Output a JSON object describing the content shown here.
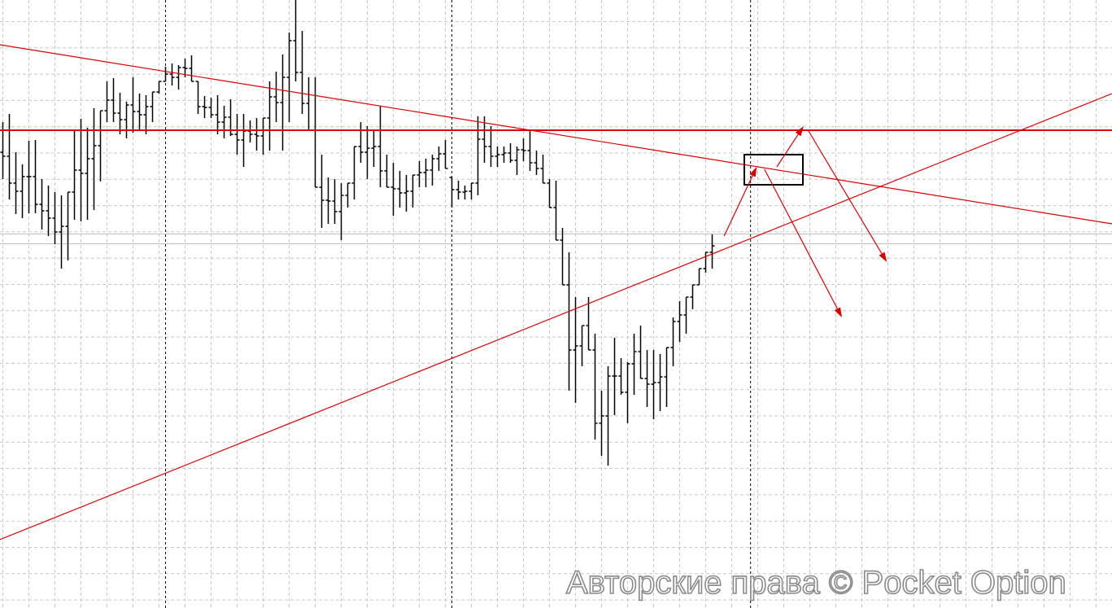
{
  "watermark": "Авторские права © Pocket Option",
  "colors": {
    "bars": "#000000",
    "drawings": "#dd0000",
    "grid": "#c8c8c8",
    "price_line": "#c0c0c0",
    "separator": "#000000"
  },
  "chart_data": {
    "type": "ohlc",
    "title": "",
    "grid": true,
    "ylim": [
      0,
      74.7
    ],
    "bars": [
      [
        56.0,
        59.7,
        52.7,
        55.5
      ],
      [
        55.5,
        60.7,
        50.2,
        52.2
      ],
      [
        52.2,
        56.0,
        48.4,
        51.2
      ],
      [
        51.2,
        54.5,
        47.9,
        53.0
      ],
      [
        53.0,
        57.4,
        48.5,
        53.0
      ],
      [
        53.0,
        57.5,
        48.5,
        49.6
      ],
      [
        49.6,
        52.7,
        46.5,
        48.8
      ],
      [
        48.8,
        51.9,
        45.7,
        47.9
      ],
      [
        47.9,
        51.1,
        44.7,
        46.2
      ],
      [
        46.2,
        50.7,
        41.7,
        46.9
      ],
      [
        46.9,
        51.1,
        42.7,
        51.1
      ],
      [
        51.1,
        58.7,
        47.7,
        53.8
      ],
      [
        53.8,
        60.1,
        47.5,
        53.4
      ],
      [
        53.4,
        59.0,
        47.7,
        55.2
      ],
      [
        55.2,
        61.4,
        48.9,
        56.8
      ],
      [
        56.8,
        61.1,
        52.4,
        61.1
      ],
      [
        61.1,
        64.7,
        59.7,
        62.4
      ],
      [
        62.4,
        65.1,
        59.7,
        60.8
      ],
      [
        60.8,
        63.3,
        58.2,
        60.0
      ],
      [
        60.0,
        62.2,
        57.7,
        61.8
      ],
      [
        61.8,
        65.2,
        58.4,
        61.0
      ],
      [
        61.0,
        63.2,
        58.7,
        60.6
      ],
      [
        60.6,
        63.0,
        58.2,
        61.6
      ],
      [
        61.6,
        63.4,
        59.7,
        63.4
      ],
      [
        63.4,
        64.7,
        63.2,
        64.7
      ],
      [
        64.7,
        66.5,
        64.7,
        65.6
      ],
      [
        65.6,
        66.9,
        64.2,
        65.2
      ],
      [
        65.2,
        66.7,
        63.7,
        66.4
      ],
      [
        66.4,
        67.5,
        65.2,
        66.3
      ],
      [
        66.3,
        67.9,
        64.7,
        64.7
      ],
      [
        64.7,
        64.7,
        60.7,
        61.6
      ],
      [
        61.6,
        62.9,
        60.2,
        61.5
      ],
      [
        61.5,
        62.7,
        60.2,
        60.6
      ],
      [
        60.6,
        63.0,
        58.2,
        59.7
      ],
      [
        59.7,
        61.7,
        57.7,
        60.3
      ],
      [
        60.3,
        62.5,
        58.0,
        58.2
      ],
      [
        58.2,
        60.7,
        55.7,
        57.5
      ],
      [
        57.5,
        60.7,
        54.2,
        58.6
      ],
      [
        58.6,
        59.9,
        57.2,
        58.2
      ],
      [
        58.2,
        60.2,
        56.2,
        58.0
      ],
      [
        58.0,
        60.2,
        55.7,
        60.2
      ],
      [
        60.2,
        64.7,
        56.2,
        62.8
      ],
      [
        62.8,
        65.9,
        59.7,
        62.1
      ],
      [
        62.1,
        68.0,
        56.2,
        65.2
      ],
      [
        65.2,
        70.7,
        59.7,
        69.7
      ],
      [
        69.7,
        74.7,
        64.7,
        65.8
      ],
      [
        65.8,
        70.9,
        60.7,
        62.0
      ],
      [
        62.0,
        65.2,
        58.7,
        58.7
      ],
      [
        58.7,
        65.2,
        51.7,
        51.7
      ],
      [
        51.7,
        55.7,
        46.7,
        50.1
      ],
      [
        50.1,
        52.9,
        47.2,
        50.0
      ],
      [
        50.0,
        52.7,
        47.2,
        48.7
      ],
      [
        48.7,
        52.2,
        45.2,
        50.7
      ],
      [
        50.7,
        52.2,
        49.2,
        52.2
      ],
      [
        52.2,
        56.7,
        50.2,
        56.7
      ],
      [
        56.7,
        59.7,
        54.7,
        56.0
      ],
      [
        56.0,
        59.2,
        52.7,
        56.5
      ],
      [
        56.5,
        58.7,
        54.2,
        56.7
      ],
      [
        56.7,
        61.7,
        51.7,
        53.7
      ],
      [
        53.7,
        55.7,
        51.7,
        51.7
      ],
      [
        51.7,
        54.7,
        48.2,
        51.5
      ],
      [
        51.5,
        53.7,
        49.2,
        51.0
      ],
      [
        51.0,
        53.2,
        48.7,
        51.2
      ],
      [
        51.2,
        53.2,
        49.2,
        53.2
      ],
      [
        53.2,
        54.9,
        51.7,
        53.5
      ],
      [
        53.5,
        55.2,
        51.7,
        53.8
      ],
      [
        53.8,
        55.7,
        51.9,
        55.2
      ],
      [
        55.2,
        56.7,
        53.7,
        55.8
      ],
      [
        55.8,
        57.5,
        54.0,
        54.0
      ],
      [
        52.9,
        52.9,
        49.2,
        51.4
      ],
      [
        51.4,
        52.5,
        50.2,
        51.1
      ],
      [
        51.1,
        51.9,
        50.2,
        51.2
      ],
      [
        51.2,
        52.2,
        50.2,
        52.2
      ],
      [
        52.2,
        60.4,
        50.7,
        57.6
      ],
      [
        57.6,
        60.4,
        54.7,
        56.7
      ],
      [
        56.7,
        59.2,
        54.2,
        55.5
      ],
      [
        55.5,
        56.7,
        54.2,
        55.7
      ],
      [
        55.7,
        56.7,
        54.7,
        55.9
      ],
      [
        55.9,
        57.1,
        54.7,
        55.0
      ],
      [
        55.0,
        56.7,
        53.2,
        56.3
      ],
      [
        56.3,
        57.7,
        54.9,
        56.2
      ],
      [
        56.2,
        58.7,
        53.7,
        54.7
      ],
      [
        54.7,
        56.2,
        53.2,
        54.0
      ],
      [
        54.0,
        55.7,
        52.2,
        52.2
      ],
      [
        52.2,
        52.7,
        49.2,
        49.2
      ],
      [
        49.2,
        52.5,
        45.2,
        45.2
      ],
      [
        45.2,
        46.7,
        39.7,
        39.7
      ],
      [
        39.7,
        43.7,
        26.7,
        31.7
      ],
      [
        31.7,
        38.2,
        25.2,
        32.2
      ],
      [
        32.2,
        34.7,
        29.7,
        34.7
      ],
      [
        34.7,
        38.2,
        31.7,
        31.7
      ],
      [
        31.7,
        33.7,
        20.7,
        22.7
      ],
      [
        22.7,
        26.7,
        18.7,
        23.6
      ],
      [
        23.6,
        29.7,
        17.5,
        28.5
      ],
      [
        28.5,
        33.2,
        23.7,
        28.5
      ],
      [
        28.5,
        30.7,
        26.2,
        26.5
      ],
      [
        26.5,
        30.2,
        22.7,
        30.0
      ],
      [
        30.0,
        33.7,
        26.2,
        31.5
      ],
      [
        31.5,
        34.7,
        28.2,
        28.2
      ],
      [
        28.2,
        31.7,
        24.7,
        27.5
      ],
      [
        27.5,
        31.7,
        23.2,
        27.7
      ],
      [
        27.7,
        31.2,
        24.2,
        28.4
      ],
      [
        28.4,
        32.0,
        24.7,
        32.0
      ],
      [
        32.0,
        35.7,
        29.7,
        35.2
      ],
      [
        35.2,
        37.7,
        32.7,
        36.0
      ],
      [
        36.0,
        38.2,
        33.7,
        38.2
      ],
      [
        38.2,
        39.7,
        36.7,
        39.7
      ],
      [
        39.7,
        41.7,
        39.7,
        41.7
      ],
      [
        41.7,
        43.7,
        41.2,
        43.7
      ],
      [
        43.7,
        45.9,
        41.7,
        44.5
      ]
    ],
    "period_separators": [
      25,
      69,
      114.9
    ],
    "price_lines": [
      46.0,
      44.8
    ],
    "drawings": {
      "horizontal_line": 58.7,
      "trend_lines": [
        {
          "from": [
            -0.4,
            69.2
          ],
          "to": [
            170.5,
            47.2
          ]
        },
        {
          "from": [
            -0.4,
            8.4
          ],
          "to": [
            170.5,
            63.2
          ]
        }
      ],
      "rectangle": {
        "from": [
          114,
          55.7
        ],
        "to": [
          123,
          52.0
        ]
      },
      "arrows": [
        {
          "from": [
            110.9,
            45.7
          ],
          "to": [
            115.9,
            54.2
          ]
        },
        {
          "from": [
            119.0,
            54.2
          ],
          "to": [
            123.1,
            59.2
          ]
        },
        {
          "from": [
            117.1,
            53.9
          ],
          "to": [
            129.0,
            35.7
          ]
        },
        {
          "from": [
            123.8,
            58.7
          ],
          "to": [
            135.9,
            42.5
          ]
        }
      ]
    }
  }
}
